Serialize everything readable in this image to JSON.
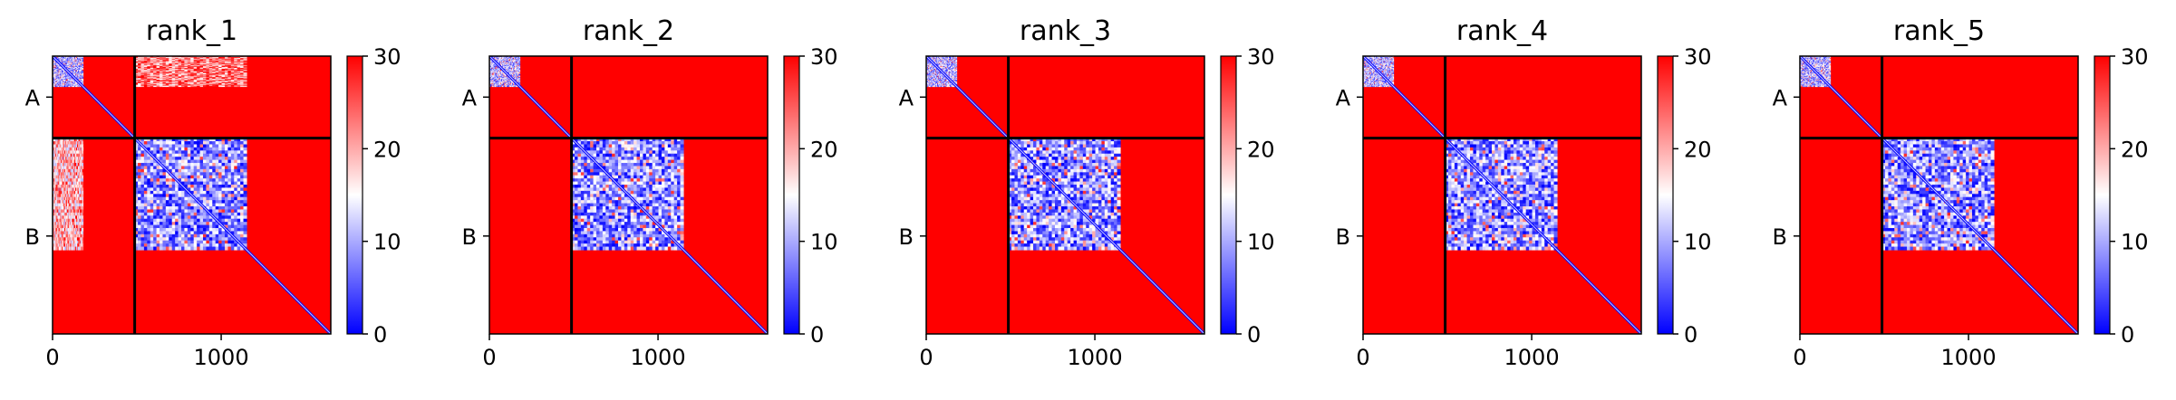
{
  "figure_type": "PAE heatmap grid",
  "colors": {
    "cmap": [
      "#0000ff",
      "#ffffff",
      "#ff0000"
    ],
    "chain_separator": "#000000",
    "background": "#ffffff"
  },
  "chart_data": [
    {
      "type": "heatmap",
      "title": "rank_1",
      "chains": [
        "A",
        "B"
      ],
      "chain_boundary": 487,
      "x_ticks": [
        "0",
        "1000"
      ],
      "x_tick_values": [
        0,
        1000
      ],
      "xlim": [
        0,
        1650
      ],
      "ylim": [
        0,
        1650
      ],
      "colorbar": {
        "ticks": [
          "0",
          "10",
          "20",
          "30"
        ],
        "tick_values": [
          0,
          10,
          20,
          30
        ],
        "vmin": 0,
        "vmax": 30
      },
      "regions": [
        {
          "x": [
            0,
            180
          ],
          "y": [
            0,
            180
          ],
          "pae": 10
        },
        {
          "x": [
            487,
            1150
          ],
          "y": [
            487,
            1150
          ],
          "pae": 8
        },
        {
          "x": [
            487,
            1150
          ],
          "y": [
            0,
            180
          ],
          "pae": 22
        },
        {
          "x": [
            0,
            180
          ],
          "y": [
            487,
            1150
          ],
          "pae": 18
        }
      ]
    },
    {
      "type": "heatmap",
      "title": "rank_2",
      "chains": [
        "A",
        "B"
      ],
      "chain_boundary": 487,
      "x_ticks": [
        "0",
        "1000"
      ],
      "x_tick_values": [
        0,
        1000
      ],
      "xlim": [
        0,
        1650
      ],
      "ylim": [
        0,
        1650
      ],
      "colorbar": {
        "ticks": [
          "0",
          "10",
          "20",
          "30"
        ],
        "tick_values": [
          0,
          10,
          20,
          30
        ],
        "vmin": 0,
        "vmax": 30
      },
      "regions": [
        {
          "x": [
            0,
            180
          ],
          "y": [
            0,
            180
          ],
          "pae": 10
        },
        {
          "x": [
            487,
            1150
          ],
          "y": [
            487,
            1150
          ],
          "pae": 8
        }
      ]
    },
    {
      "type": "heatmap",
      "title": "rank_3",
      "chains": [
        "A",
        "B"
      ],
      "chain_boundary": 487,
      "x_ticks": [
        "0",
        "1000"
      ],
      "x_tick_values": [
        0,
        1000
      ],
      "xlim": [
        0,
        1650
      ],
      "ylim": [
        0,
        1650
      ],
      "colorbar": {
        "ticks": [
          "0",
          "10",
          "20",
          "30"
        ],
        "tick_values": [
          0,
          10,
          20,
          30
        ],
        "vmin": 0,
        "vmax": 30
      },
      "regions": [
        {
          "x": [
            0,
            180
          ],
          "y": [
            0,
            180
          ],
          "pae": 10
        },
        {
          "x": [
            487,
            1150
          ],
          "y": [
            487,
            1150
          ],
          "pae": 8
        }
      ]
    },
    {
      "type": "heatmap",
      "title": "rank_4",
      "chains": [
        "A",
        "B"
      ],
      "chain_boundary": 487,
      "x_ticks": [
        "0",
        "1000"
      ],
      "x_tick_values": [
        0,
        1000
      ],
      "xlim": [
        0,
        1650
      ],
      "ylim": [
        0,
        1650
      ],
      "colorbar": {
        "ticks": [
          "0",
          "10",
          "20",
          "30"
        ],
        "tick_values": [
          0,
          10,
          20,
          30
        ],
        "vmin": 0,
        "vmax": 30
      },
      "regions": [
        {
          "x": [
            0,
            180
          ],
          "y": [
            0,
            180
          ],
          "pae": 10
        },
        {
          "x": [
            487,
            1150
          ],
          "y": [
            487,
            1150
          ],
          "pae": 8
        }
      ]
    },
    {
      "type": "heatmap",
      "title": "rank_5",
      "chains": [
        "A",
        "B"
      ],
      "chain_boundary": 487,
      "x_ticks": [
        "0",
        "1000"
      ],
      "x_tick_values": [
        0,
        1000
      ],
      "xlim": [
        0,
        1650
      ],
      "ylim": [
        0,
        1650
      ],
      "colorbar": {
        "ticks": [
          "0",
          "10",
          "20",
          "30"
        ],
        "tick_values": [
          0,
          10,
          20,
          30
        ],
        "vmin": 0,
        "vmax": 30
      },
      "regions": [
        {
          "x": [
            0,
            180
          ],
          "y": [
            0,
            180
          ],
          "pae": 10
        },
        {
          "x": [
            487,
            1150
          ],
          "y": [
            487,
            1150
          ],
          "pae": 8
        }
      ]
    }
  ]
}
